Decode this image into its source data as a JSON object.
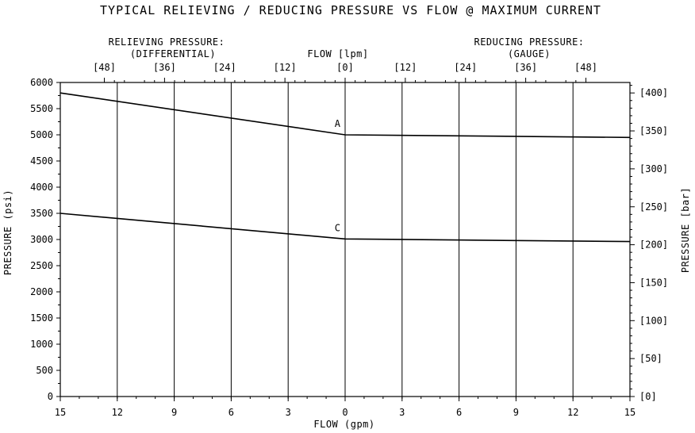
{
  "chart_data": {
    "type": "line",
    "title": "TYPICAL RELIEVING / REDUCING PRESSURE VS FLOW @ MAXIMUM CURRENT",
    "xlabel": "FLOW (gpm)",
    "ylabel": "PRESSURE (psi)",
    "y2label": "PRESSURE [bar]",
    "x2label": "FLOW [lpm]",
    "x2_left_label": [
      "RELIEVING PRESSURE:",
      "(DIFFERENTIAL)"
    ],
    "x2_right_label": [
      "REDUCING PRESSURE:",
      "(GAUGE)"
    ],
    "x_domain": [
      -15,
      15
    ],
    "xlim": [
      -15,
      15
    ],
    "ylim": [
      0,
      6000
    ],
    "grid": "vertical lines only",
    "x_tick_values": [
      -15,
      -12,
      -9,
      -6,
      -3,
      0,
      3,
      6,
      9,
      12,
      15
    ],
    "x_tick_labels": [
      "15",
      "12",
      "9",
      "6",
      "3",
      "0",
      "3",
      "6",
      "9",
      "12",
      "15"
    ],
    "y_ticks": [
      0,
      500,
      1000,
      1500,
      2000,
      2500,
      3000,
      3500,
      4000,
      4500,
      5000,
      5500,
      6000
    ],
    "y_tick_labels": [
      "0",
      "500",
      "1000",
      "1500",
      "2000",
      "2500",
      "3000",
      "3500",
      "4000",
      "4500",
      "5000",
      "5500",
      "6000"
    ],
    "x2_ticks": [
      {
        "gpm": -12.68,
        "label": "[48]"
      },
      {
        "gpm": -9.51,
        "label": "[36]"
      },
      {
        "gpm": -6.34,
        "label": "[24]"
      },
      {
        "gpm": -3.17,
        "label": "[12]"
      },
      {
        "gpm": 0,
        "label": "[0]"
      },
      {
        "gpm": 3.17,
        "label": "[12]"
      },
      {
        "gpm": 6.34,
        "label": "[24]"
      },
      {
        "gpm": 9.51,
        "label": "[36]"
      },
      {
        "gpm": 12.68,
        "label": "[48]"
      }
    ],
    "y2_ticks": [
      {
        "psi": 0,
        "label": "[0]"
      },
      {
        "psi": 725,
        "label": "[50]"
      },
      {
        "psi": 1450,
        "label": "[100]"
      },
      {
        "psi": 2175,
        "label": "[150]"
      },
      {
        "psi": 2900,
        "label": "[200]"
      },
      {
        "psi": 3625,
        "label": "[250]"
      },
      {
        "psi": 4350,
        "label": "[300]"
      },
      {
        "psi": 5075,
        "label": "[350]"
      },
      {
        "psi": 5800,
        "label": "[400]"
      }
    ],
    "series": [
      {
        "name": "A",
        "x": [
          -15,
          0,
          15
        ],
        "y": [
          5800,
          5000,
          4950
        ]
      },
      {
        "name": "C",
        "x": [
          -15,
          0,
          15
        ],
        "y": [
          3500,
          3010,
          2960
        ]
      }
    ]
  }
}
